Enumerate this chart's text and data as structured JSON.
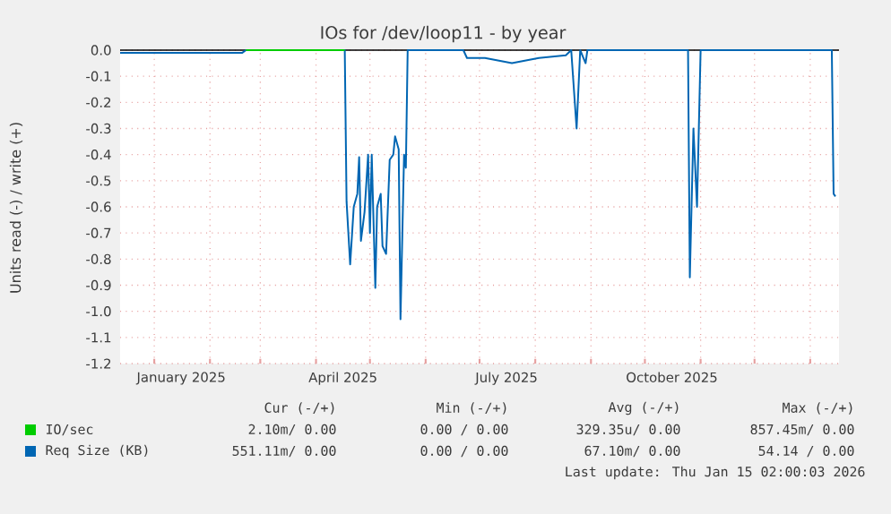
{
  "chart_data": {
    "type": "line",
    "title": "IOs for /dev/loop11 - by year",
    "ylabel": "Units read (-) / write (+)",
    "xlim": [
      "2024-12-13",
      "2026-01-17"
    ],
    "ylim": [
      -1.2,
      0
    ],
    "xticks": [
      {
        "value": "2025-01-01",
        "label": null
      },
      {
        "value": "2025-01-16",
        "label": "January 2025"
      },
      {
        "value": "2025-02-01",
        "label": null
      },
      {
        "value": "2025-03-01",
        "label": null
      },
      {
        "value": "2025-04-01",
        "label": null
      },
      {
        "value": "2025-04-16",
        "label": "April 2025"
      },
      {
        "value": "2025-05-01",
        "label": null
      },
      {
        "value": "2025-06-01",
        "label": null
      },
      {
        "value": "2025-07-01",
        "label": null
      },
      {
        "value": "2025-07-16",
        "label": "July 2025"
      },
      {
        "value": "2025-08-01",
        "label": null
      },
      {
        "value": "2025-09-01",
        "label": null
      },
      {
        "value": "2025-10-01",
        "label": null
      },
      {
        "value": "2025-10-16",
        "label": "October 2025"
      },
      {
        "value": "2025-11-01",
        "label": null
      },
      {
        "value": "2025-12-01",
        "label": null
      },
      {
        "value": "2026-01-01",
        "label": null
      }
    ],
    "yticks": [
      {
        "value": -1.2,
        "label": "-1.2"
      },
      {
        "value": -1.1,
        "label": "-1.1"
      },
      {
        "value": -1.0,
        "label": "-1.0"
      },
      {
        "value": -0.9,
        "label": "-0.9"
      },
      {
        "value": -0.8,
        "label": "-0.8"
      },
      {
        "value": -0.7,
        "label": "-0.7"
      },
      {
        "value": -0.6,
        "label": "-0.6"
      },
      {
        "value": -0.5,
        "label": "-0.5"
      },
      {
        "value": -0.4,
        "label": "-0.4"
      },
      {
        "value": -0.3,
        "label": "-0.3"
      },
      {
        "value": -0.2,
        "label": "-0.2"
      },
      {
        "value": -0.1,
        "label": "-0.1"
      },
      {
        "value": 0,
        "label": "0.0"
      }
    ],
    "grid": true,
    "legend": "bottom",
    "series": [
      {
        "name": "Req Size (KB)",
        "color": "#0066b3",
        "x": [
          "2024-12-13",
          "2025-01-15",
          "2025-02-19",
          "2025-02-21",
          "2025-04-17",
          "2025-04-18",
          "2025-04-20",
          "2025-04-22",
          "2025-04-24",
          "2025-04-25",
          "2025-04-26",
          "2025-04-28",
          "2025-04-30",
          "2025-05-01",
          "2025-05-02",
          "2025-05-04",
          "2025-05-05",
          "2025-05-07",
          "2025-05-08",
          "2025-05-10",
          "2025-05-12",
          "2025-05-14",
          "2025-05-15",
          "2025-05-17",
          "2025-05-18",
          "2025-05-20",
          "2025-05-21",
          "2025-05-22",
          "2025-06-22",
          "2025-06-24",
          "2025-07-04",
          "2025-07-19",
          "2025-08-03",
          "2025-08-18",
          "2025-08-21",
          "2025-08-24",
          "2025-08-26",
          "2025-08-29",
          "2025-08-30",
          "2025-10-25",
          "2025-10-26",
          "2025-10-28",
          "2025-10-30",
          "2025-11-01",
          "2026-01-13",
          "2026-01-14",
          "2026-01-15"
        ],
        "values": [
          -0.01,
          -0.01,
          -0.01,
          0,
          0,
          -0.58,
          -0.82,
          -0.6,
          -0.55,
          -0.41,
          -0.73,
          -0.62,
          -0.4,
          -0.7,
          -0.4,
          -0.91,
          -0.6,
          -0.55,
          -0.75,
          -0.78,
          -0.42,
          -0.4,
          -0.33,
          -0.38,
          -1.03,
          -0.4,
          -0.45,
          0,
          0,
          -0.03,
          -0.03,
          -0.05,
          -0.03,
          -0.02,
          0,
          -0.3,
          0,
          -0.05,
          0,
          0,
          -0.87,
          -0.3,
          -0.6,
          0,
          0,
          -0.55,
          -0.56
        ]
      },
      {
        "name": "IO/sec",
        "color": "#00cc00",
        "x": [
          "2025-02-21",
          "2025-04-17"
        ],
        "values": [
          0,
          0
        ]
      }
    ],
    "annotations": [
      "Cur (-/+)",
      "Min (-/+)",
      "Avg (-/+)",
      "Max (-/+)",
      "2.10m/ 0.00",
      "0.00 / 0.00",
      "329.35u/ 0.00",
      "857.45m/ 0.00",
      "551.11m/ 0.00",
      "0.00 / 0.00",
      "67.10m/ 0.00",
      "54.14 / 0.00",
      "Last update: Thu Jan 15 02:00:03 2026"
    ]
  }
}
